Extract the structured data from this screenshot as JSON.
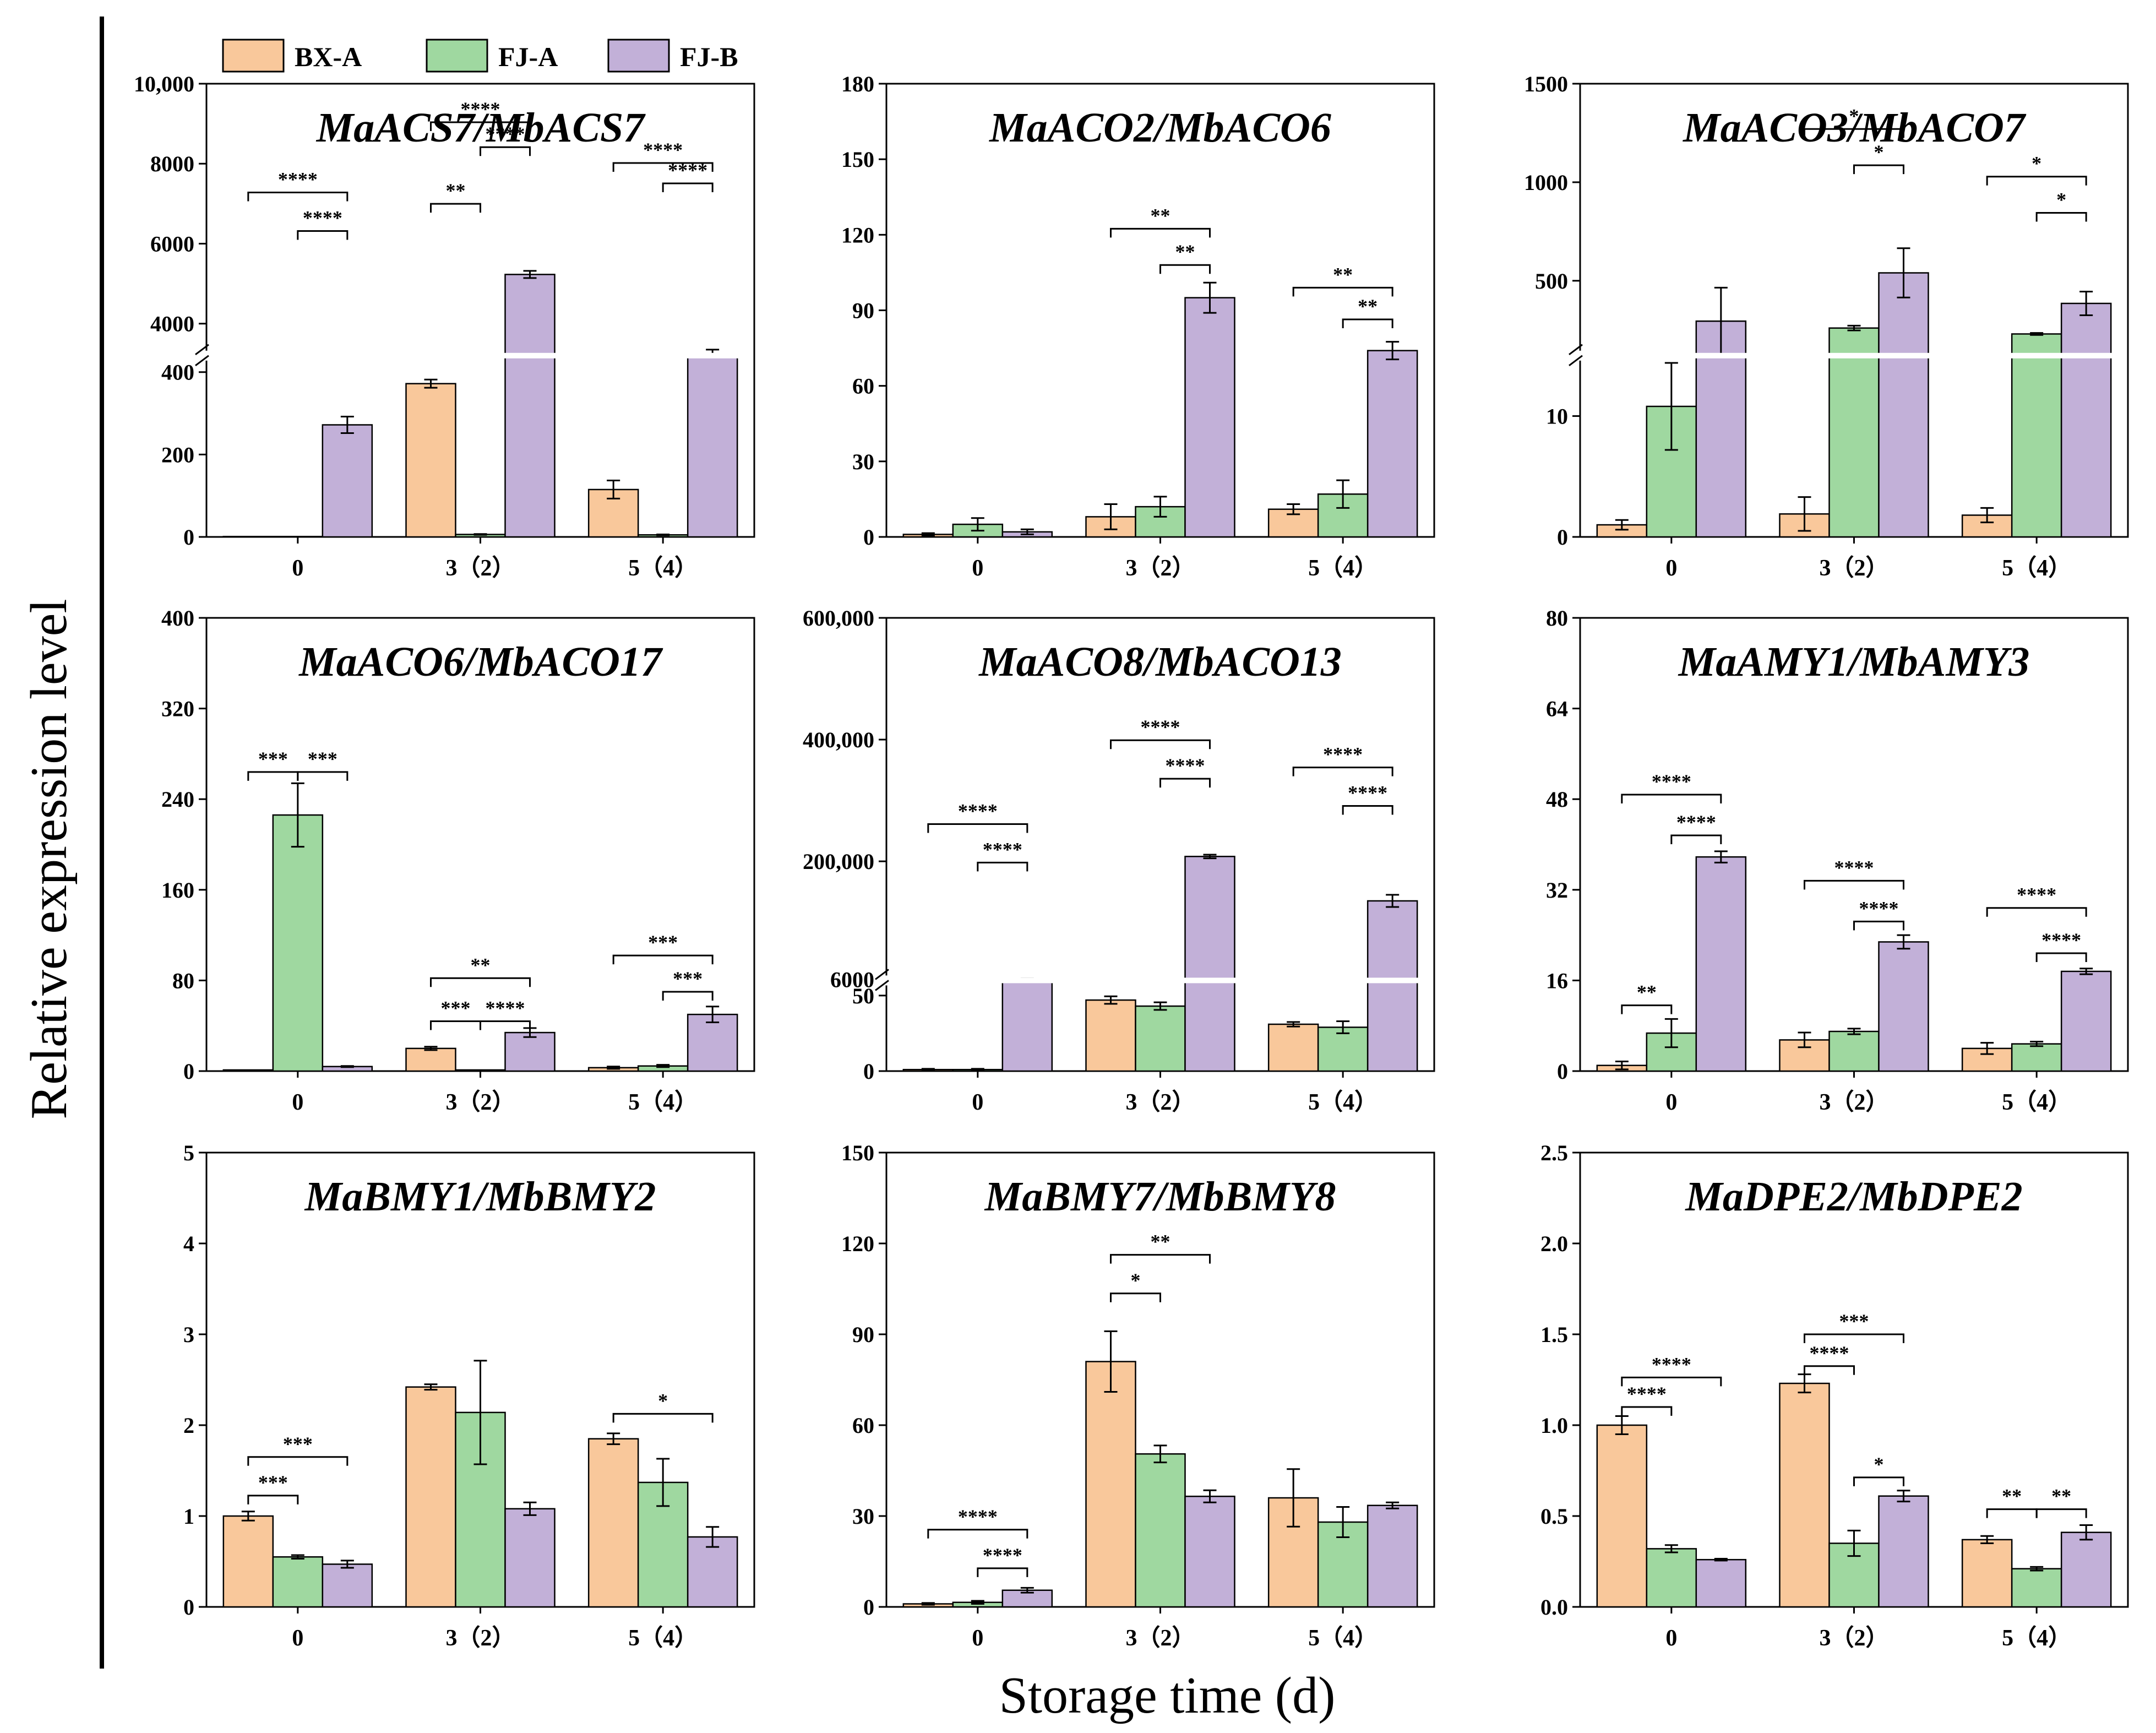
{
  "figure": {
    "ylabel": "Relative expression level",
    "xlabel": "Storage time (d)",
    "legend": [
      {
        "name": "BX-A",
        "color": "#f9c89b"
      },
      {
        "name": "FJ-A",
        "color": "#9fd8a0"
      },
      {
        "name": "FJ-B",
        "color": "#c2b0d8"
      }
    ]
  },
  "chart_data": [
    {
      "type": "bar",
      "title": "MaACS7/MbACS7",
      "categories": [
        "0",
        "3（2）",
        "5（4）"
      ],
      "ylabel": "Relative expression level",
      "xlabel": "Storage time (d)",
      "axis_break": {
        "lower": [
          0,
          440
        ],
        "upper": [
          3200,
          10000
        ],
        "lower_fraction": 0.4
      },
      "yticks": [
        0,
        200,
        400,
        4000,
        6000,
        8000,
        10000
      ],
      "ytick_labels": [
        "0",
        "200",
        "400",
        "4000",
        "6000",
        "8000",
        "10,000"
      ],
      "series": [
        {
          "name": "BX-A",
          "values": [
            1,
            372,
            115
          ],
          "errors": [
            0,
            10,
            22
          ]
        },
        {
          "name": "FJ-A",
          "values": [
            1,
            6,
            5
          ],
          "errors": [
            0,
            1,
            1
          ]
        },
        {
          "name": "FJ-B",
          "values": [
            272,
            5230,
            3230
          ],
          "errors": [
            20,
            90,
            120
          ]
        }
      ],
      "significance": [
        {
          "cat": 0,
          "from": 1,
          "to": 2,
          "label": "****",
          "y": 0.675
        },
        {
          "cat": 0,
          "from": 0,
          "to": 2,
          "label": "****",
          "y": 0.76
        },
        {
          "cat": 1,
          "from": 0,
          "to": 1,
          "label": "**",
          "y": 0.735
        },
        {
          "cat": 1,
          "from": 1,
          "to": 2,
          "label": "****",
          "y": 0.86
        },
        {
          "cat": 1,
          "from": 0,
          "to": 2,
          "label": "****",
          "y": 0.915
        },
        {
          "cat": 2,
          "from": 1,
          "to": 2,
          "label": "****",
          "y": 0.78
        },
        {
          "cat": 2,
          "from": 0,
          "to": 2,
          "label": "****",
          "y": 0.825
        }
      ]
    },
    {
      "type": "bar",
      "title": "MaACO2/MbACO6",
      "categories": [
        "0",
        "3（2）",
        "5（4）"
      ],
      "ylabel": "Relative expression level",
      "xlabel": "Storage time (d)",
      "ylim": [
        0,
        180
      ],
      "yticks": [
        0,
        30,
        60,
        90,
        120,
        150,
        180
      ],
      "ytick_labels": [
        "0",
        "30",
        "60",
        "90",
        "120",
        "150",
        "180"
      ],
      "series": [
        {
          "name": "BX-A",
          "values": [
            1,
            8,
            11
          ],
          "errors": [
            0.5,
            5,
            2
          ]
        },
        {
          "name": "FJ-A",
          "values": [
            5,
            12,
            17
          ],
          "errors": [
            2.5,
            4,
            5.5
          ]
        },
        {
          "name": "FJ-B",
          "values": [
            2,
            95,
            74
          ],
          "errors": [
            1,
            6,
            3.5
          ]
        }
      ],
      "significance": [
        {
          "cat": 1,
          "from": 1,
          "to": 2,
          "label": "**",
          "y": 0.6
        },
        {
          "cat": 1,
          "from": 0,
          "to": 2,
          "label": "**",
          "y": 0.68
        },
        {
          "cat": 2,
          "from": 1,
          "to": 2,
          "label": "**",
          "y": 0.48
        },
        {
          "cat": 2,
          "from": 0,
          "to": 2,
          "label": "**",
          "y": 0.55
        }
      ]
    },
    {
      "type": "bar",
      "title": "MaACO3/MbACO7",
      "categories": [
        "0",
        "3（2）",
        "5（4）"
      ],
      "ylabel": "Relative expression level",
      "xlabel": "Storage time (d)",
      "axis_break": {
        "lower": [
          0,
          15
        ],
        "upper": [
          120,
          1500
        ],
        "lower_fraction": 0.4
      },
      "yticks": [
        0,
        10,
        500,
        1000,
        1500
      ],
      "ytick_labels": [
        "0",
        "10",
        "500",
        "1000",
        "1500"
      ],
      "series": [
        {
          "name": "BX-A",
          "values": [
            1,
            1.9,
            1.8
          ],
          "errors": [
            0.4,
            1.4,
            0.6
          ]
        },
        {
          "name": "FJ-A",
          "values": [
            10.8,
            260,
            230
          ],
          "errors": [
            3.6,
            12,
            5
          ]
        },
        {
          "name": "FJ-B",
          "values": [
            295,
            540,
            385
          ],
          "errors": [
            170,
            125,
            60
          ]
        }
      ],
      "significance": [
        {
          "cat": 1,
          "from": 1,
          "to": 2,
          "label": "*",
          "y": 0.82
        },
        {
          "cat": 1,
          "from": 0,
          "to": 2,
          "label": "*",
          "y": 0.9
        },
        {
          "cat": 2,
          "from": 1,
          "to": 2,
          "label": "*",
          "y": 0.715
        },
        {
          "cat": 2,
          "from": 0,
          "to": 2,
          "label": "*",
          "y": 0.795
        }
      ]
    },
    {
      "type": "bar",
      "title": "MaACO6/MbACO17",
      "categories": [
        "0",
        "3（2）",
        "5（4）"
      ],
      "ylabel": "Relative expression level",
      "xlabel": "Storage time (d)",
      "ylim": [
        0,
        400
      ],
      "yticks": [
        0,
        80,
        160,
        240,
        320,
        400
      ],
      "ytick_labels": [
        "0",
        "80",
        "160",
        "240",
        "320",
        "400"
      ],
      "series": [
        {
          "name": "BX-A",
          "values": [
            1,
            20,
            3
          ],
          "errors": [
            0,
            1.5,
            1
          ]
        },
        {
          "name": "FJ-A",
          "values": [
            226,
            1,
            4.5
          ],
          "errors": [
            28,
            0,
            1
          ]
        },
        {
          "name": "FJ-B",
          "values": [
            4,
            34,
            50
          ],
          "errors": [
            0.5,
            4,
            7
          ]
        }
      ],
      "significance": [
        {
          "cat": 0,
          "from": 0,
          "to": 1,
          "label": "***",
          "y": 0.66
        },
        {
          "cat": 0,
          "from": 1,
          "to": 2,
          "label": "***",
          "y": 0.66
        },
        {
          "cat": 1,
          "from": 0,
          "to": 1,
          "label": "***",
          "y": 0.11
        },
        {
          "cat": 1,
          "from": 1,
          "to": 2,
          "label": "****",
          "y": 0.11
        },
        {
          "cat": 1,
          "from": 0,
          "to": 2,
          "label": "**",
          "y": 0.205
        },
        {
          "cat": 2,
          "from": 1,
          "to": 2,
          "label": "***",
          "y": 0.175
        },
        {
          "cat": 2,
          "from": 0,
          "to": 2,
          "label": "***",
          "y": 0.255
        }
      ]
    },
    {
      "type": "bar",
      "title": "MaACO8/MbACO13",
      "categories": [
        "0",
        "3（2）",
        "5（4）"
      ],
      "ylabel": "Relative expression level",
      "xlabel": "Storage time (d)",
      "axis_break": {
        "lower": [
          0,
          60
        ],
        "upper": [
          4300,
          600000
        ],
        "lower_fraction": 0.2
      },
      "yticks": [
        0,
        50,
        6000,
        200000,
        400000,
        600000
      ],
      "ytick_labels": [
        "0",
        "50",
        "6000",
        "200,000",
        "400,000",
        "600,000"
      ],
      "series": [
        {
          "name": "BX-A",
          "values": [
            1,
            47,
            31
          ],
          "errors": [
            0.5,
            2.5,
            1.5
          ]
        },
        {
          "name": "FJ-A",
          "values": [
            1,
            43,
            29
          ],
          "errors": [
            0.5,
            2.5,
            4
          ]
        },
        {
          "name": "FJ-B",
          "values": [
            5950,
            208000,
            135000
          ],
          "errors": [
            1500,
            3000,
            10000
          ]
        }
      ],
      "significance": [
        {
          "cat": 0,
          "from": 1,
          "to": 2,
          "label": "****",
          "y": 0.46
        },
        {
          "cat": 0,
          "from": 0,
          "to": 2,
          "label": "****",
          "y": 0.545
        },
        {
          "cat": 1,
          "from": 1,
          "to": 2,
          "label": "****",
          "y": 0.645
        },
        {
          "cat": 1,
          "from": 0,
          "to": 2,
          "label": "****",
          "y": 0.73
        },
        {
          "cat": 2,
          "from": 1,
          "to": 2,
          "label": "****",
          "y": 0.585
        },
        {
          "cat": 2,
          "from": 0,
          "to": 2,
          "label": "****",
          "y": 0.67
        }
      ]
    },
    {
      "type": "bar",
      "title": "MaAMY1/MbAMY3",
      "categories": [
        "0",
        "3（2）",
        "5（4）"
      ],
      "ylabel": "Relative expression level",
      "xlabel": "Storage time (d)",
      "ylim": [
        0,
        80
      ],
      "yticks": [
        0,
        16,
        32,
        48,
        64,
        80
      ],
      "ytick_labels": [
        "0",
        "16",
        "32",
        "48",
        "64",
        "80"
      ],
      "series": [
        {
          "name": "BX-A",
          "values": [
            1,
            5.5,
            4
          ],
          "errors": [
            0.7,
            1.3,
            1
          ]
        },
        {
          "name": "FJ-A",
          "values": [
            6.7,
            7,
            4.8
          ],
          "errors": [
            2.5,
            0.5,
            0.4
          ]
        },
        {
          "name": "FJ-B",
          "values": [
            37.8,
            22.8,
            17.6
          ],
          "errors": [
            1,
            1.2,
            0.5
          ]
        }
      ],
      "significance": [
        {
          "cat": 0,
          "from": 0,
          "to": 1,
          "label": "**",
          "y": 0.145
        },
        {
          "cat": 0,
          "from": 1,
          "to": 2,
          "label": "****",
          "y": 0.52
        },
        {
          "cat": 0,
          "from": 0,
          "to": 2,
          "label": "****",
          "y": 0.61
        },
        {
          "cat": 1,
          "from": 1,
          "to": 2,
          "label": "****",
          "y": 0.33
        },
        {
          "cat": 1,
          "from": 0,
          "to": 2,
          "label": "****",
          "y": 0.42
        },
        {
          "cat": 2,
          "from": 1,
          "to": 2,
          "label": "****",
          "y": 0.26
        },
        {
          "cat": 2,
          "from": 0,
          "to": 2,
          "label": "****",
          "y": 0.36
        }
      ]
    },
    {
      "type": "bar",
      "title": "MaBMY1/MbBMY2",
      "categories": [
        "0",
        "3（2）",
        "5（4）"
      ],
      "ylabel": "Relative expression level",
      "xlabel": "Storage time (d)",
      "ylim": [
        0,
        5
      ],
      "yticks": [
        0,
        1,
        2,
        3,
        4,
        5
      ],
      "ytick_labels": [
        "0",
        "1",
        "2",
        "3",
        "4",
        "5"
      ],
      "series": [
        {
          "name": "BX-A",
          "values": [
            1,
            2.42,
            1.85
          ],
          "errors": [
            0.05,
            0.03,
            0.06
          ]
        },
        {
          "name": "FJ-A",
          "values": [
            0.55,
            2.14,
            1.37
          ],
          "errors": [
            0.02,
            0.57,
            0.26
          ]
        },
        {
          "name": "FJ-B",
          "values": [
            0.47,
            1.08,
            0.77
          ],
          "errors": [
            0.04,
            0.07,
            0.11
          ]
        }
      ],
      "significance": [
        {
          "cat": 0,
          "from": 0,
          "to": 1,
          "label": "***",
          "y": 0.245
        },
        {
          "cat": 0,
          "from": 0,
          "to": 2,
          "label": "***",
          "y": 0.33
        },
        {
          "cat": 2,
          "from": 0,
          "to": 2,
          "label": "*",
          "y": 0.425
        }
      ]
    },
    {
      "type": "bar",
      "title": "MaBMY7/MbBMY8",
      "categories": [
        "0",
        "3（2）",
        "5（4）"
      ],
      "ylabel": "Relative expression level",
      "xlabel": "Storage time (d)",
      "ylim": [
        0,
        150
      ],
      "yticks": [
        0,
        30,
        60,
        90,
        120,
        150
      ],
      "ytick_labels": [
        "0",
        "30",
        "60",
        "90",
        "120",
        "150"
      ],
      "series": [
        {
          "name": "BX-A",
          "values": [
            1,
            81,
            36
          ],
          "errors": [
            0.3,
            10,
            9.5
          ]
        },
        {
          "name": "FJ-A",
          "values": [
            1.5,
            50.5,
            28
          ],
          "errors": [
            0.5,
            2.8,
            5
          ]
        },
        {
          "name": "FJ-B",
          "values": [
            5.5,
            36.5,
            33.5
          ],
          "errors": [
            0.8,
            2,
            1
          ]
        }
      ],
      "significance": [
        {
          "cat": 0,
          "from": 1,
          "to": 2,
          "label": "****",
          "y": 0.085
        },
        {
          "cat": 0,
          "from": 0,
          "to": 2,
          "label": "****",
          "y": 0.17
        },
        {
          "cat": 1,
          "from": 0,
          "to": 1,
          "label": "*",
          "y": 0.69
        },
        {
          "cat": 1,
          "from": 0,
          "to": 2,
          "label": "**",
          "y": 0.775
        }
      ]
    },
    {
      "type": "bar",
      "title": "MaDPE2/MbDPE2",
      "categories": [
        "0",
        "3（2）",
        "5（4）"
      ],
      "ylabel": "Relative expression level",
      "xlabel": "Storage time (d)",
      "ylim": [
        0,
        2.5
      ],
      "yticks": [
        0,
        0.5,
        1.0,
        1.5,
        2.0,
        2.5
      ],
      "ytick_labels": [
        "0.0",
        "0.5",
        "1.0",
        "1.5",
        "2.0",
        "2.5"
      ],
      "series": [
        {
          "name": "BX-A",
          "values": [
            1,
            1.23,
            0.37
          ],
          "errors": [
            0.05,
            0.05,
            0.02
          ]
        },
        {
          "name": "FJ-A",
          "values": [
            0.32,
            0.35,
            0.21
          ],
          "errors": [
            0.02,
            0.07,
            0.01
          ]
        },
        {
          "name": "FJ-B",
          "values": [
            0.26,
            0.61,
            0.41
          ],
          "errors": [
            0.005,
            0.03,
            0.04
          ]
        }
      ],
      "significance": [
        {
          "cat": 0,
          "from": 0,
          "to": 1,
          "label": "****",
          "y": 0.44
        },
        {
          "cat": 0,
          "from": 0,
          "to": 2,
          "label": "****",
          "y": 0.505
        },
        {
          "cat": 1,
          "from": 0,
          "to": 1,
          "label": "****",
          "y": 0.53
        },
        {
          "cat": 1,
          "from": 0,
          "to": 2,
          "label": "***",
          "y": 0.6
        },
        {
          "cat": 1,
          "from": 1,
          "to": 2,
          "label": "*",
          "y": 0.285
        },
        {
          "cat": 2,
          "from": 0,
          "to": 1,
          "label": "**",
          "y": 0.215
        },
        {
          "cat": 2,
          "from": 1,
          "to": 2,
          "label": "**",
          "y": 0.215
        }
      ]
    }
  ]
}
